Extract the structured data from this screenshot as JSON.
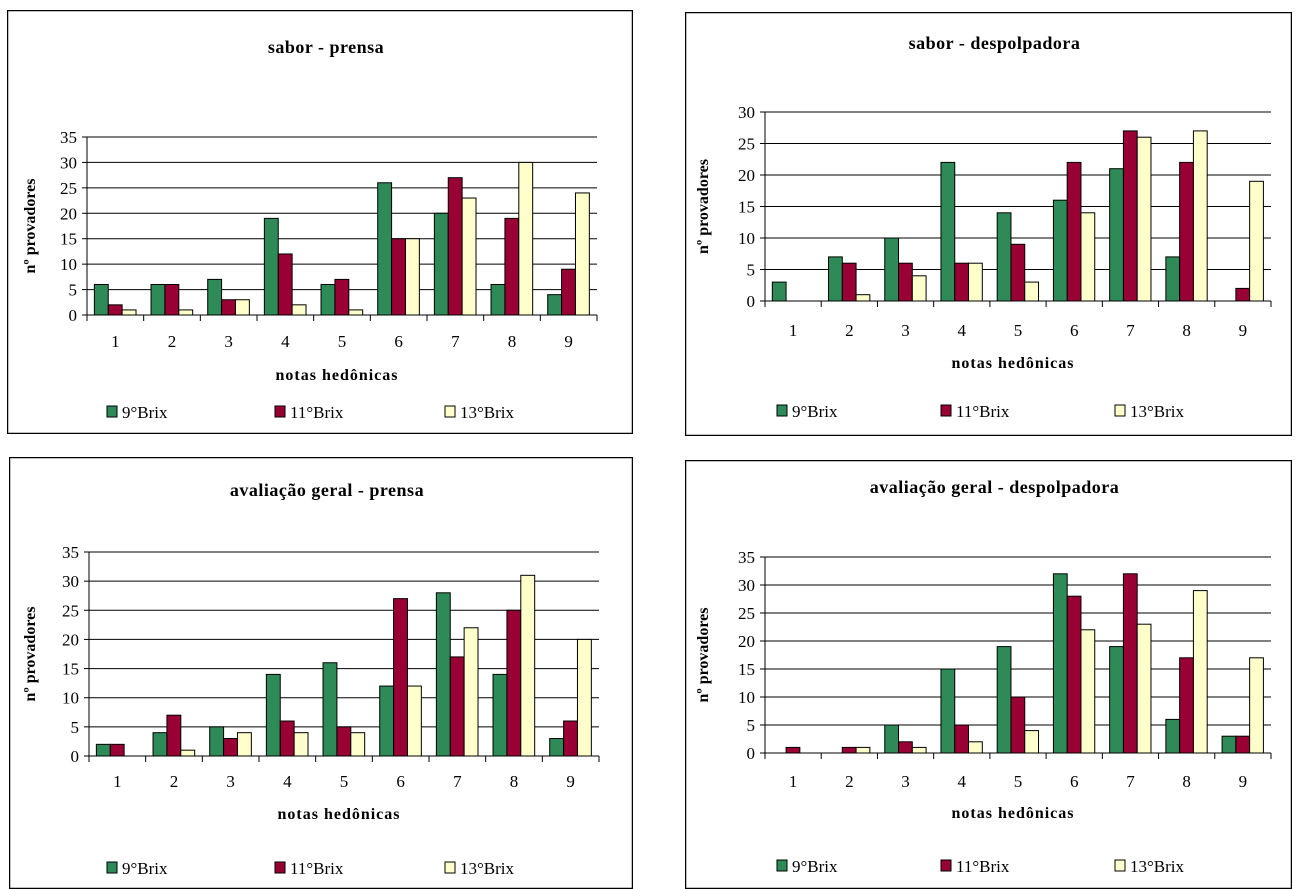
{
  "colors": {
    "9Brix": "#2e8b57",
    "11Brix": "#990033",
    "13Brix": "#ffffcc"
  },
  "chart_data": [
    {
      "type": "bar",
      "title": "sabor - prensa",
      "xlabel": "notas hedônicas",
      "ylabel": "nº provadores",
      "categories": [
        "1",
        "2",
        "3",
        "4",
        "5",
        "6",
        "7",
        "8",
        "9"
      ],
      "ylim": [
        0,
        35
      ],
      "yticks": [
        0,
        5,
        10,
        15,
        20,
        25,
        30,
        35
      ],
      "grid": true,
      "legend": "bottom",
      "series": [
        {
          "name": "9°Brix",
          "values": [
            6,
            6,
            7,
            19,
            6,
            26,
            20,
            6,
            4
          ]
        },
        {
          "name": "11°Brix",
          "values": [
            2,
            6,
            3,
            12,
            7,
            15,
            27,
            19,
            9
          ]
        },
        {
          "name": "13°Brix",
          "values": [
            1,
            1,
            3,
            2,
            1,
            15,
            23,
            30,
            24
          ]
        }
      ]
    },
    {
      "type": "bar",
      "title": "sabor - despolpadora",
      "xlabel": "notas hedônicas",
      "ylabel": "nº provadores",
      "categories": [
        "1",
        "2",
        "3",
        "4",
        "5",
        "6",
        "7",
        "8",
        "9"
      ],
      "ylim": [
        0,
        30
      ],
      "yticks": [
        0,
        5,
        10,
        15,
        20,
        25,
        30
      ],
      "grid": true,
      "legend": "bottom",
      "series": [
        {
          "name": "9°Brix",
          "values": [
            3,
            7,
            10,
            22,
            14,
            16,
            21,
            7,
            0
          ]
        },
        {
          "name": "11°Brix",
          "values": [
            0,
            6,
            6,
            6,
            9,
            22,
            27,
            22,
            2
          ]
        },
        {
          "name": "13°Brix",
          "values": [
            0,
            1,
            4,
            6,
            3,
            14,
            26,
            27,
            19
          ]
        }
      ]
    },
    {
      "type": "bar",
      "title": "avaliação geral - prensa",
      "xlabel": "notas hedônicas",
      "ylabel": "nº provadores",
      "categories": [
        "1",
        "2",
        "3",
        "4",
        "5",
        "6",
        "7",
        "8",
        "9"
      ],
      "ylim": [
        0,
        35
      ],
      "yticks": [
        0,
        5,
        10,
        15,
        20,
        25,
        30,
        35
      ],
      "grid": true,
      "legend": "bottom",
      "series": [
        {
          "name": "9°Brix",
          "values": [
            2,
            4,
            5,
            14,
            16,
            12,
            28,
            14,
            3
          ]
        },
        {
          "name": "11°Brix",
          "values": [
            2,
            7,
            3,
            6,
            5,
            27,
            17,
            25,
            6
          ]
        },
        {
          "name": "13°Brix",
          "values": [
            0,
            1,
            4,
            4,
            4,
            12,
            22,
            31,
            20
          ]
        }
      ]
    },
    {
      "type": "bar",
      "title": "avaliação geral - despolpadora",
      "xlabel": "notas hedônicas",
      "ylabel": "nº provadores",
      "categories": [
        "1",
        "2",
        "3",
        "4",
        "5",
        "6",
        "7",
        "8",
        "9"
      ],
      "ylim": [
        0,
        35
      ],
      "yticks": [
        0,
        5,
        10,
        15,
        20,
        25,
        30,
        35
      ],
      "grid": true,
      "legend": "bottom",
      "series": [
        {
          "name": "9°Brix",
          "values": [
            0,
            0,
            5,
            15,
            19,
            32,
            19,
            6,
            3
          ]
        },
        {
          "name": "11°Brix",
          "values": [
            1,
            1,
            2,
            5,
            10,
            28,
            32,
            17,
            3
          ]
        },
        {
          "name": "13°Brix",
          "values": [
            0,
            1,
            1,
            2,
            4,
            22,
            23,
            29,
            17
          ]
        }
      ]
    }
  ]
}
